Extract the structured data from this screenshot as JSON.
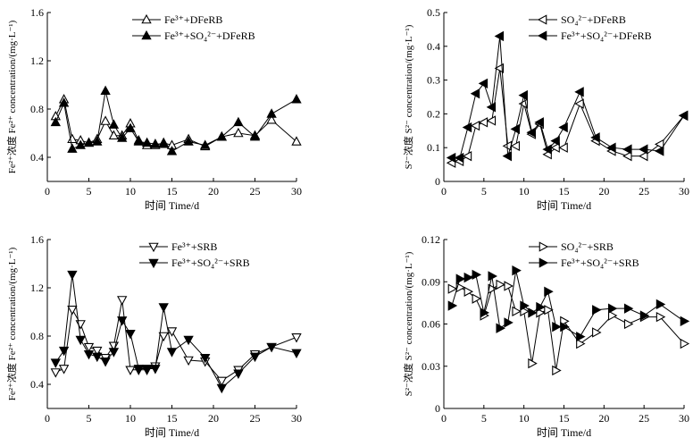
{
  "chart_data": [
    {
      "type": "line",
      "ylabel": "Fe²⁺浓度 Fe²⁺ concentration/(mg·L⁻¹)",
      "xlabel": "时间 Time/d",
      "xlim": [
        0,
        30
      ],
      "ylim": [
        0.2,
        1.6
      ],
      "yticks": [
        "0.4",
        "0.8",
        "1.2",
        "1.6"
      ],
      "xticks": [
        "0",
        "5",
        "10",
        "15",
        "20",
        "25",
        "30"
      ],
      "legend_position": "top-center",
      "series": [
        {
          "name": "Fe³⁺+DFeRB",
          "marker": "triangle-up",
          "fill": "open",
          "x": [
            1,
            2,
            3,
            4,
            5,
            6,
            7,
            8,
            9,
            10,
            11,
            12,
            13,
            14,
            15,
            17,
            19,
            21,
            23,
            25,
            27,
            30
          ],
          "y": [
            0.74,
            0.88,
            0.55,
            0.54,
            0.52,
            0.55,
            0.7,
            0.58,
            0.58,
            0.68,
            0.54,
            0.5,
            0.5,
            0.52,
            0.5,
            0.55,
            0.49,
            0.57,
            0.6,
            0.58,
            0.71,
            0.53
          ]
        },
        {
          "name": "Fe³⁺+SO₄²⁻+DFeRB",
          "marker": "triangle-up",
          "fill": "solid",
          "x": [
            1,
            2,
            3,
            4,
            5,
            6,
            7,
            8,
            9,
            10,
            11,
            12,
            13,
            14,
            15,
            17,
            19,
            21,
            23,
            25,
            27,
            30
          ],
          "y": [
            0.69,
            0.85,
            0.47,
            0.5,
            0.52,
            0.53,
            0.95,
            0.67,
            0.56,
            0.64,
            0.53,
            0.52,
            0.51,
            0.51,
            0.45,
            0.53,
            0.5,
            0.57,
            0.69,
            0.57,
            0.76,
            0.88
          ]
        }
      ]
    },
    {
      "type": "line",
      "ylabel": "S²⁻浓度 S²⁻ concentration/(mg·L⁻¹)",
      "xlabel": "时间 Time/d",
      "xlim": [
        0,
        30
      ],
      "ylim": [
        0,
        0.5
      ],
      "yticks": [
        "0",
        "0.1",
        "0.2",
        "0.3",
        "0.4",
        "0.5"
      ],
      "xticks": [
        "0",
        "5",
        "10",
        "15",
        "20",
        "25",
        "30"
      ],
      "legend_position": "top-center",
      "series": [
        {
          "name": "SO₄²⁻+DFeRB",
          "marker": "triangle-left",
          "fill": "open",
          "x": [
            1,
            2,
            3,
            4,
            5,
            6,
            7,
            8,
            9,
            10,
            11,
            12,
            13,
            14,
            15,
            17,
            19,
            21,
            23,
            25,
            27,
            30
          ],
          "y": [
            0.055,
            0.06,
            0.075,
            0.165,
            0.175,
            0.18,
            0.335,
            0.105,
            0.105,
            0.23,
            0.14,
            0.17,
            0.08,
            0.1,
            0.1,
            0.23,
            0.12,
            0.09,
            0.075,
            0.075,
            0.11,
            0.195
          ]
        },
        {
          "name": "Fe³⁺+SO₄²⁻+DFeRB",
          "marker": "triangle-left",
          "fill": "solid",
          "x": [
            1,
            2,
            3,
            4,
            5,
            6,
            7,
            8,
            9,
            10,
            11,
            12,
            13,
            14,
            15,
            17,
            19,
            21,
            23,
            25,
            27,
            30
          ],
          "y": [
            0.07,
            0.07,
            0.16,
            0.26,
            0.29,
            0.22,
            0.43,
            0.075,
            0.155,
            0.255,
            0.145,
            0.175,
            0.095,
            0.12,
            0.16,
            0.265,
            0.13,
            0.1,
            0.095,
            0.095,
            0.09,
            0.195
          ]
        }
      ]
    },
    {
      "type": "line",
      "ylabel": "Fe²⁺浓度 Fe²⁺ concentration/(mg·L⁻¹)",
      "xlabel": "时间 Time/d",
      "xlim": [
        0,
        30
      ],
      "ylim": [
        0.2,
        1.6
      ],
      "yticks": [
        "0.4",
        "0.8",
        "1.2",
        "1.6"
      ],
      "xticks": [
        "0",
        "5",
        "10",
        "15",
        "20",
        "25",
        "30"
      ],
      "legend_position": "top-center",
      "series": [
        {
          "name": "Fe³⁺+SRB",
          "marker": "triangle-down",
          "fill": "open",
          "x": [
            1,
            2,
            3,
            4,
            5,
            6,
            7,
            8,
            9,
            10,
            11,
            12,
            13,
            14,
            15,
            17,
            19,
            21,
            23,
            25,
            27,
            30
          ],
          "y": [
            0.5,
            0.53,
            1.02,
            0.9,
            0.71,
            0.68,
            0.62,
            0.72,
            1.1,
            0.52,
            0.52,
            0.52,
            0.55,
            0.8,
            0.84,
            0.6,
            0.59,
            0.43,
            0.52,
            0.65,
            0.71,
            0.79
          ]
        },
        {
          "name": "Fe³⁺+SO₄²⁻+SRB",
          "marker": "triangle-down",
          "fill": "solid",
          "x": [
            1,
            2,
            3,
            4,
            5,
            6,
            7,
            8,
            9,
            10,
            11,
            12,
            13,
            14,
            15,
            17,
            19,
            21,
            23,
            25,
            27,
            30
          ],
          "y": [
            0.58,
            0.68,
            1.31,
            0.77,
            0.65,
            0.63,
            0.59,
            0.67,
            0.93,
            0.82,
            0.53,
            0.53,
            0.53,
            1.04,
            0.67,
            0.77,
            0.62,
            0.37,
            0.49,
            0.63,
            0.71,
            0.66
          ]
        }
      ]
    },
    {
      "type": "line",
      "ylabel": "S²⁻浓度 S²⁻ concentration/(mg·L⁻¹)",
      "xlabel": "时间 Time/d",
      "xlim": [
        0,
        30
      ],
      "ylim": [
        0,
        0.12
      ],
      "yticks": [
        "0",
        "0.03",
        "0.06",
        "0.09",
        "0.12"
      ],
      "xticks": [
        "0",
        "5",
        "10",
        "15",
        "20",
        "25",
        "30"
      ],
      "legend_position": "top-center",
      "series": [
        {
          "name": "SO₄²⁻+SRB",
          "marker": "triangle-right",
          "fill": "open",
          "x": [
            1,
            2,
            3,
            4,
            5,
            6,
            7,
            8,
            9,
            10,
            11,
            12,
            13,
            14,
            15,
            17,
            19,
            21,
            23,
            25,
            27,
            30
          ],
          "y": [
            0.085,
            0.086,
            0.083,
            0.078,
            0.066,
            0.085,
            0.088,
            0.087,
            0.069,
            0.069,
            0.032,
            0.068,
            0.07,
            0.027,
            0.062,
            0.046,
            0.054,
            0.066,
            0.06,
            0.065,
            0.065,
            0.046
          ]
        },
        {
          "name": "Fe³⁺+SO₄²⁻+SRB",
          "marker": "triangle-right",
          "fill": "solid",
          "x": [
            1,
            2,
            3,
            4,
            5,
            6,
            7,
            8,
            9,
            10,
            11,
            12,
            13,
            14,
            15,
            17,
            19,
            21,
            23,
            25,
            27,
            30
          ],
          "y": [
            0.073,
            0.092,
            0.093,
            0.095,
            0.068,
            0.094,
            0.057,
            0.061,
            0.098,
            0.073,
            0.068,
            0.072,
            0.083,
            0.058,
            0.058,
            0.051,
            0.07,
            0.071,
            0.071,
            0.066,
            0.074,
            0.062
          ]
        }
      ]
    }
  ]
}
